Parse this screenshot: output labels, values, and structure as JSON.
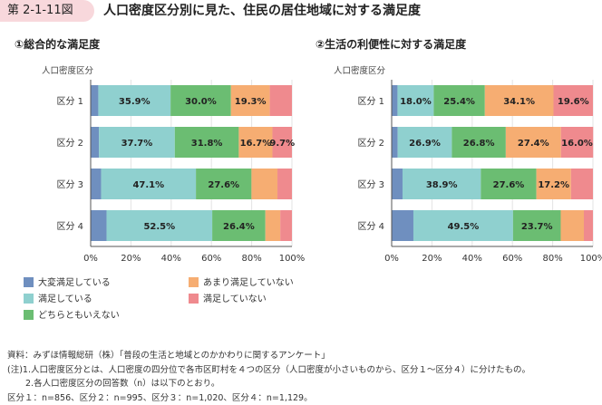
{
  "figure": {
    "badge": "第 2-1-11図",
    "title": "人口密度区分別に見た、住民の居住地域に対する満足度"
  },
  "colors": {
    "very_satisfied": "#6f8fbf",
    "satisfied": "#8fd0cf",
    "neutral": "#6bbd72",
    "not_very": "#f6ad72",
    "not_satisfied": "#ef8a8e"
  },
  "legend": [
    {
      "key": "very_satisfied",
      "label": "大変満足している"
    },
    {
      "key": "not_very",
      "label": "あまり満足していない"
    },
    {
      "key": "satisfied",
      "label": "満足している"
    },
    {
      "key": "not_satisfied",
      "label": "満足していない"
    },
    {
      "key": "neutral",
      "label": "どちらともいえない"
    }
  ],
  "chart_data": [
    {
      "type": "bar",
      "orientation": "horizontal",
      "stacked": true,
      "title": "①総合的な満足度",
      "ylabel": "人口密度区分",
      "xlim": [
        0,
        100
      ],
      "x_ticks": [
        "0%",
        "20%",
        "40%",
        "60%",
        "80%",
        "100%"
      ],
      "categories": [
        "区分 1",
        "区分 2",
        "区分 3",
        "区分 4"
      ],
      "series": [
        {
          "name": "大変満足している",
          "key": "very_satisfied",
          "values": [
            3.8,
            4.1,
            5.2,
            7.9
          ],
          "labels": [
            "",
            "",
            "",
            ""
          ]
        },
        {
          "name": "満足している",
          "key": "satisfied",
          "values": [
            35.9,
            37.7,
            47.1,
            52.5
          ],
          "labels": [
            "35.9%",
            "37.7%",
            "47.1%",
            "52.5%"
          ]
        },
        {
          "name": "どちらともいえない",
          "key": "neutral",
          "values": [
            30.0,
            31.8,
            27.6,
            26.4
          ],
          "labels": [
            "30.0%",
            "31.8%",
            "27.6%",
            "26.4%"
          ]
        },
        {
          "name": "あまり満足していない",
          "key": "not_very",
          "values": [
            19.3,
            16.7,
            12.9,
            7.4
          ],
          "labels": [
            "19.3%",
            "16.7%",
            "",
            ""
          ]
        },
        {
          "name": "満足していない",
          "key": "not_satisfied",
          "values": [
            11.0,
            9.7,
            7.2,
            5.8
          ],
          "labels": [
            "",
            "9.7%",
            "",
            ""
          ]
        }
      ]
    },
    {
      "type": "bar",
      "orientation": "horizontal",
      "stacked": true,
      "title": "②生活の利便性に対する満足度",
      "ylabel": "人口密度区分",
      "xlim": [
        0,
        100
      ],
      "x_ticks": [
        "0%",
        "20%",
        "40%",
        "60%",
        "80%",
        "100%"
      ],
      "categories": [
        "区分 1",
        "区分 2",
        "区分 3",
        "区分 4"
      ],
      "series": [
        {
          "name": "大変満足している",
          "key": "very_satisfied",
          "values": [
            2.9,
            3.0,
            5.4,
            10.8
          ],
          "labels": [
            "",
            "",
            "",
            ""
          ]
        },
        {
          "name": "満足している",
          "key": "satisfied",
          "values": [
            18.0,
            26.9,
            38.9,
            49.5
          ],
          "labels": [
            "18.0%",
            "26.9%",
            "38.9%",
            "49.5%"
          ]
        },
        {
          "name": "どちらともいえない",
          "key": "neutral",
          "values": [
            25.4,
            26.8,
            27.6,
            23.7
          ],
          "labels": [
            "25.4%",
            "26.8%",
            "27.6%",
            "23.7%"
          ]
        },
        {
          "name": "あまり満足していない",
          "key": "not_very",
          "values": [
            34.1,
            27.4,
            17.2,
            11.5
          ],
          "labels": [
            "34.1%",
            "27.4%",
            "17.2%",
            ""
          ]
        },
        {
          "name": "満足していない",
          "key": "not_satisfied",
          "values": [
            19.6,
            16.0,
            10.9,
            4.5
          ],
          "labels": [
            "19.6%",
            "16.0%",
            "",
            ""
          ]
        }
      ]
    }
  ],
  "notes": [
    "資料：みずほ情報総研（株）「普段の生活と地域とのかかわりに関するアンケート」",
    "(注)1.人口密度区分とは、人口密度の四分位で各市区町村を４つの区分（人口密度が小さいものから、区分１～区分４）に分けたもの。",
    "2.各人口密度区分の回答数（n）は以下のとおり。",
    "区分１：n=856、区分２：n=995、区分３：n=1,020、区分４：n=1,129。"
  ]
}
